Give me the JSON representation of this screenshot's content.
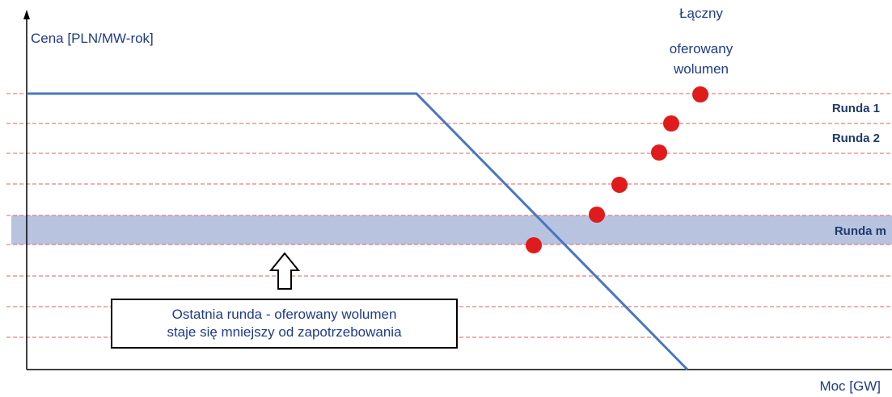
{
  "axes": {
    "y_label": "Cena [PLN/MW-rok]",
    "x_label": "Moc [GW]"
  },
  "volume_label": [
    "Łączny",
    "oferowany",
    "wolumen"
  ],
  "rounds": {
    "r1": "Runda 1",
    "r2": "Runda 2",
    "rm": "Runda m"
  },
  "callout": {
    "line1": "Ostatnia runda - oferowany wolumen",
    "line2": "staje się mniejszy od zapotrzebowania"
  },
  "colors": {
    "axis": "#000000",
    "demand_curve": "#4a76c2",
    "gridline": "#e06060",
    "highlight_band": "#b8c3e0",
    "bid_points": "#e01b1b",
    "text": "#1f3a8a"
  }
}
